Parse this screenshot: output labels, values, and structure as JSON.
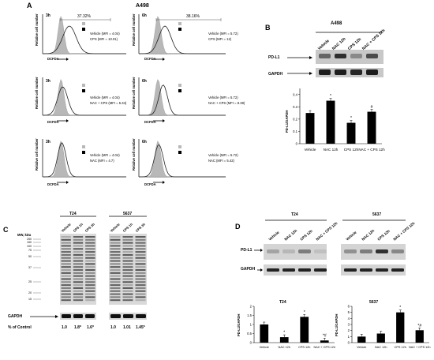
{
  "panel_labels": {
    "a": "A",
    "b": "B",
    "c": "C",
    "d": "D"
  },
  "panel_a": {
    "title": "A498",
    "ylabel": "Relative cell number",
    "xlabel": "DCFDA",
    "pct_3h": "37.32%",
    "pct_6h": "38.16%",
    "rows": [
      {
        "left_time": "3h",
        "right_time": "6h",
        "left_legend": [
          "Vehicle (MFI = 4.04)",
          "CPS (MFI = 10.01)"
        ],
        "right_legend": [
          "Vehicle (MFI = 5.72)",
          "CPS (MFI = 12)"
        ]
      },
      {
        "left_time": "3h",
        "right_time": "6h",
        "left_legend": [
          "Vehicle (MFI = 4.04)",
          "NAC + CPS (MFI = 5.34)"
        ],
        "right_legend": [
          "Vehicle (MFI = 5.72)",
          "NAC + CPS (MFI = 8.38)"
        ]
      },
      {
        "left_time": "3h",
        "right_time": "6h",
        "left_legend": [
          "Vehicle (MFI = 4.04)",
          "NAC (MFI = 4.7)"
        ],
        "right_legend": [
          "Vehicle (MFI = 5.72)",
          "NAC (MFI = 5.42)"
        ]
      }
    ]
  },
  "panel_b": {
    "cell": "A498",
    "lanes": [
      "Vehicle",
      "NAC 12h",
      "CPS 12h",
      "NAC + CPS 12h"
    ],
    "rows": [
      "PD-L1",
      "GAPDH"
    ],
    "ylabel": "PD-L1/GAPDH",
    "yticks": [
      "0",
      "0.1",
      "0.2",
      "0.3",
      "0.4"
    ],
    "sig": [
      "",
      "*",
      "*",
      "#"
    ]
  },
  "panel_c": {
    "t24": "T24",
    "s5637": "5637",
    "lanes_t24": [
      "Vehicle",
      "CPS 1h",
      "CPS 3h"
    ],
    "lanes_5637": [
      "Vehicle",
      "CPS 1h",
      "CPS 3h"
    ],
    "mw_label": "MW, kDa",
    "mw": [
      "250",
      "150",
      "100",
      "75",
      "50",
      "37",
      "25",
      "20",
      "15"
    ],
    "gapdh": "GAPDH",
    "pct_label": "% of Control",
    "pct_t24": [
      "1.0",
      "1.8*",
      "1.6*"
    ],
    "pct_5637": [
      "1.0",
      "1.01",
      "1.45*"
    ]
  },
  "panel_d": {
    "t24": "T24",
    "s5637": "5637",
    "lanes": [
      "Vehicle",
      "NAC 12h",
      "CPS 12h",
      "NAC + CPS 12h"
    ],
    "rows": [
      "PD-L1",
      "GAPDH"
    ],
    "ylabel": "PD-L1/GAPDH",
    "yticks_t24": [
      "0",
      "0.5",
      "1",
      "1.5",
      "2"
    ],
    "yticks_5637": [
      "0",
      "1",
      "2",
      "3",
      "4",
      "5",
      "6"
    ],
    "xlabels": [
      "Vehicle",
      "NAC 12h",
      "CPS 12h",
      "NAC + CPS 12h"
    ],
    "sig_t24": [
      "",
      "*",
      "*",
      "*#"
    ],
    "sig_5637": [
      "",
      "",
      "*",
      "*#"
    ]
  },
  "chart_data": [
    {
      "type": "bar",
      "title": "",
      "categories": [
        "Vehicle",
        "NAC 12h",
        "CPS 12h",
        "NAC + CPS 12h"
      ],
      "values": [
        0.25,
        0.35,
        0.17,
        0.26
      ],
      "ylabel": "PD-L1/GAPDH",
      "ylim": [
        0,
        0.45
      ]
    },
    {
      "type": "bar",
      "title": "T24",
      "categories": [
        "Vehicle",
        "NAC 12h",
        "CPS 12h",
        "NAC + CPS 12h"
      ],
      "values": [
        1.0,
        0.3,
        1.42,
        0.12
      ],
      "ylabel": "PD-L1/GAPDH",
      "ylim": [
        0,
        2
      ]
    },
    {
      "type": "bar",
      "title": "5637",
      "categories": [
        "Vehicle",
        "NAC 12h",
        "CPS 12h",
        "NAC + CPS 12h"
      ],
      "values": [
        1.0,
        1.5,
        5.0,
        2.05
      ],
      "ylabel": "PD-L1/GAPDH",
      "ylim": [
        0,
        6
      ]
    }
  ]
}
